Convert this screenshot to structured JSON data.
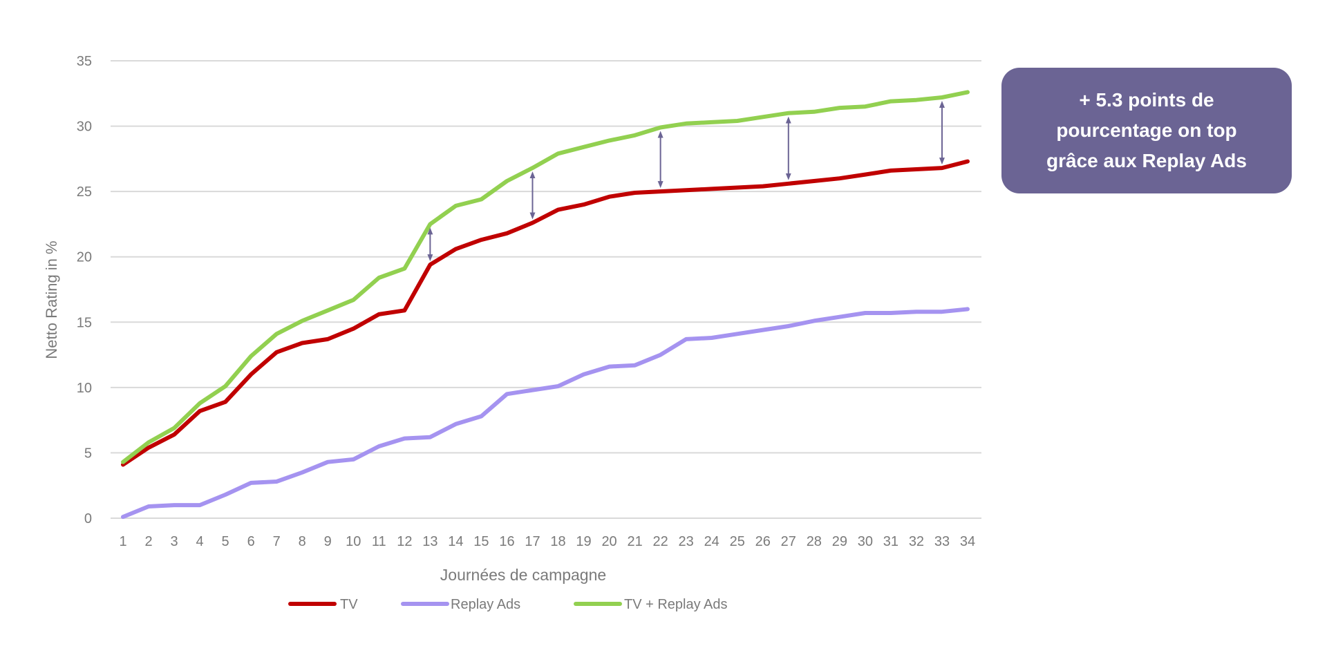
{
  "callout": {
    "lines": [
      "+ 5.3 points de",
      "pourcentage on top",
      "grâce aux Replay Ads"
    ]
  },
  "chart_data": {
    "type": "line",
    "title": "",
    "xlabel": "Journées de campagne",
    "ylabel": "Netto Rating in %",
    "ylim": [
      0,
      35
    ],
    "yticks": [
      0,
      5,
      10,
      15,
      20,
      25,
      30,
      35
    ],
    "grid": true,
    "legend_position": "bottom",
    "categories": [
      "1",
      "2",
      "3",
      "4",
      "5",
      "6",
      "7",
      "8",
      "9",
      "10",
      "11",
      "12",
      "13",
      "14",
      "15",
      "16",
      "17",
      "18",
      "19",
      "20",
      "21",
      "22",
      "23",
      "24",
      "25",
      "26",
      "27",
      "28",
      "29",
      "30",
      "31",
      "32",
      "33",
      "34"
    ],
    "series": [
      {
        "name": "TV",
        "color": "#c00000",
        "values": [
          4.1,
          5.4,
          6.4,
          8.2,
          8.9,
          11.0,
          12.7,
          13.4,
          13.7,
          14.5,
          15.6,
          15.9,
          19.4,
          20.6,
          21.3,
          21.8,
          22.6,
          23.6,
          24.0,
          24.6,
          24.9,
          25.0,
          25.1,
          25.2,
          25.3,
          25.4,
          25.6,
          25.8,
          26.0,
          26.3,
          26.6,
          26.7,
          26.8,
          27.3
        ]
      },
      {
        "name": "Replay Ads",
        "color": "#a593f0",
        "values": [
          0.1,
          0.9,
          1.0,
          1.0,
          1.8,
          2.7,
          2.8,
          3.5,
          4.3,
          4.5,
          5.5,
          6.1,
          6.2,
          7.2,
          7.8,
          9.5,
          9.8,
          10.1,
          11.0,
          11.6,
          11.7,
          12.5,
          13.7,
          13.8,
          14.1,
          14.4,
          14.7,
          15.1,
          15.4,
          15.7,
          15.7,
          15.8,
          15.8,
          16.0
        ]
      },
      {
        "name": "TV + Replay Ads",
        "color": "#92d050",
        "values": [
          4.3,
          5.8,
          6.9,
          8.8,
          10.1,
          12.4,
          14.1,
          15.1,
          15.9,
          16.7,
          18.4,
          19.1,
          22.5,
          23.9,
          24.4,
          25.8,
          26.8,
          27.9,
          28.4,
          28.9,
          29.3,
          29.9,
          30.2,
          30.3,
          30.4,
          30.7,
          31.0,
          31.1,
          31.4,
          31.5,
          31.9,
          32.0,
          32.2,
          32.6
        ]
      }
    ],
    "annotations": {
      "double_arrows_at_days": [
        13,
        17,
        22,
        27,
        33
      ],
      "arrow_color": "#6b6494"
    }
  }
}
